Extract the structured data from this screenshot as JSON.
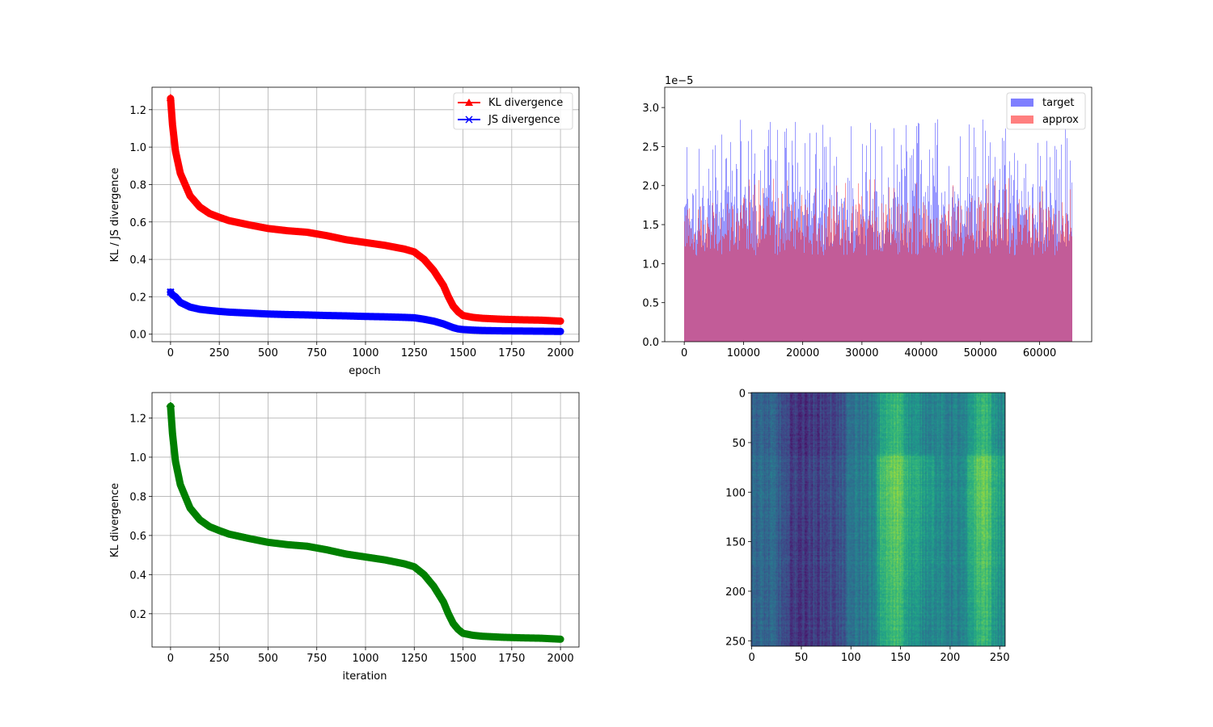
{
  "chart_data": [
    {
      "type": "line",
      "xlabel": "epoch",
      "ylabel": "KL / JS divergence",
      "xlim": [
        -95,
        2095
      ],
      "ylim": [
        -0.04,
        1.32
      ],
      "xticks": [
        0,
        250,
        500,
        750,
        1000,
        1250,
        1500,
        1750,
        2000
      ],
      "xtick_labels": [
        "0",
        "250",
        "500",
        "750",
        "1000",
        "1250",
        "1500",
        "1750",
        "2000"
      ],
      "yticks": [
        0.0,
        0.2,
        0.4,
        0.6,
        0.8,
        1.0,
        1.2
      ],
      "ytick_labels": [
        "0.0",
        "0.2",
        "0.4",
        "0.6",
        "0.8",
        "1.0",
        "1.2"
      ],
      "grid": true,
      "legend": "top-right",
      "x": [
        0,
        10,
        25,
        50,
        100,
        150,
        200,
        250,
        300,
        400,
        500,
        600,
        700,
        800,
        900,
        1000,
        1100,
        1200,
        1250,
        1300,
        1350,
        1400,
        1425,
        1450,
        1475,
        1500,
        1550,
        1600,
        1700,
        1800,
        1900,
        2000
      ],
      "series": [
        {
          "name": "KL divergence",
          "color": "#ff0000",
          "marker": "triangle",
          "values": [
            1.26,
            1.12,
            0.98,
            0.86,
            0.74,
            0.68,
            0.645,
            0.625,
            0.607,
            0.585,
            0.565,
            0.553,
            0.545,
            0.527,
            0.505,
            0.49,
            0.475,
            0.455,
            0.44,
            0.4,
            0.34,
            0.26,
            0.2,
            0.15,
            0.12,
            0.1,
            0.09,
            0.085,
            0.08,
            0.077,
            0.075,
            0.07
          ]
        },
        {
          "name": "JS divergence",
          "color": "#0000ff",
          "marker": "x",
          "values": [
            0.225,
            0.21,
            0.2,
            0.17,
            0.145,
            0.133,
            0.127,
            0.122,
            0.118,
            0.113,
            0.108,
            0.105,
            0.103,
            0.1,
            0.098,
            0.095,
            0.093,
            0.09,
            0.088,
            0.08,
            0.07,
            0.055,
            0.045,
            0.035,
            0.028,
            0.025,
            0.022,
            0.02,
            0.018,
            0.017,
            0.016,
            0.015
          ]
        }
      ]
    },
    {
      "type": "bar",
      "scale_label": "1e−5",
      "xlim": [
        -3300,
        68800
      ],
      "ylim": [
        0,
        3.26
      ],
      "xticks": [
        0,
        10000,
        20000,
        30000,
        40000,
        50000,
        60000
      ],
      "xtick_labels": [
        "0",
        "10000",
        "20000",
        "30000",
        "40000",
        "50000",
        "60000"
      ],
      "yticks": [
        0.0,
        0.5,
        1.0,
        1.5,
        2.0,
        2.5,
        3.0
      ],
      "ytick_labels": [
        "0.0",
        "0.5",
        "1.0",
        "1.5",
        "2.0",
        "2.5",
        "3.0"
      ],
      "legend": "top-right",
      "bin_count": 65536,
      "value_range": [
        1.0,
        2.85
      ],
      "series": [
        {
          "name": "target",
          "color": "#0000ff",
          "alpha": 0.5,
          "typical": [
            1.2,
            2.0
          ],
          "max": 2.85
        },
        {
          "name": "approx",
          "color": "#ff0000",
          "alpha": 0.5,
          "typical": [
            1.1,
            1.8
          ],
          "max": 2.1
        }
      ]
    },
    {
      "type": "line",
      "xlabel": "iteration",
      "ylabel": "KL divergence",
      "xlim": [
        -95,
        2095
      ],
      "ylim": [
        0.03,
        1.33
      ],
      "xticks": [
        0,
        250,
        500,
        750,
        1000,
        1250,
        1500,
        1750,
        2000
      ],
      "xtick_labels": [
        "0",
        "250",
        "500",
        "750",
        "1000",
        "1250",
        "1500",
        "1750",
        "2000"
      ],
      "yticks": [
        0.2,
        0.4,
        0.6,
        0.8,
        1.0,
        1.2
      ],
      "ytick_labels": [
        "0.2",
        "0.4",
        "0.6",
        "0.8",
        "1.0",
        "1.2"
      ],
      "grid": true,
      "x": [
        0,
        10,
        25,
        50,
        100,
        150,
        200,
        250,
        300,
        400,
        500,
        600,
        700,
        800,
        900,
        1000,
        1100,
        1200,
        1250,
        1300,
        1350,
        1400,
        1425,
        1450,
        1475,
        1500,
        1550,
        1600,
        1700,
        1800,
        1900,
        2000
      ],
      "series": [
        {
          "color": "#008000",
          "marker": "plus",
          "values": [
            1.26,
            1.12,
            0.98,
            0.86,
            0.74,
            0.68,
            0.645,
            0.625,
            0.607,
            0.585,
            0.565,
            0.553,
            0.545,
            0.527,
            0.505,
            0.49,
            0.475,
            0.455,
            0.44,
            0.4,
            0.34,
            0.26,
            0.2,
            0.15,
            0.12,
            0.1,
            0.09,
            0.085,
            0.08,
            0.077,
            0.075,
            0.07
          ]
        }
      ]
    },
    {
      "type": "heatmap",
      "colormap": "viridis",
      "size": [
        256,
        256
      ],
      "xlim": [
        -0.5,
        255.5
      ],
      "ylim": [
        255.5,
        -0.5
      ],
      "xticks": [
        0,
        50,
        100,
        150,
        200,
        250
      ],
      "xtick_labels": [
        "0",
        "50",
        "100",
        "150",
        "200",
        "250"
      ],
      "yticks": [
        0,
        50,
        100,
        150,
        200,
        250
      ],
      "ytick_labels": [
        "0",
        "50",
        "100",
        "150",
        "200",
        "250"
      ],
      "column_profile": [
        [
          0,
          0.32
        ],
        [
          25,
          0.3
        ],
        [
          35,
          0.18
        ],
        [
          50,
          0.14
        ],
        [
          70,
          0.18
        ],
        [
          90,
          0.22
        ],
        [
          100,
          0.36
        ],
        [
          125,
          0.42
        ],
        [
          130,
          0.58
        ],
        [
          150,
          0.68
        ],
        [
          158,
          0.52
        ],
        [
          175,
          0.46
        ],
        [
          215,
          0.42
        ],
        [
          225,
          0.6
        ],
        [
          235,
          0.68
        ],
        [
          245,
          0.52
        ],
        [
          255,
          0.45
        ]
      ],
      "row_profile": [
        [
          0,
          0.0
        ],
        [
          60,
          0.0
        ],
        [
          65,
          0.12
        ],
        [
          150,
          0.08
        ],
        [
          200,
          0.04
        ],
        [
          256,
          0.0
        ]
      ]
    }
  ]
}
